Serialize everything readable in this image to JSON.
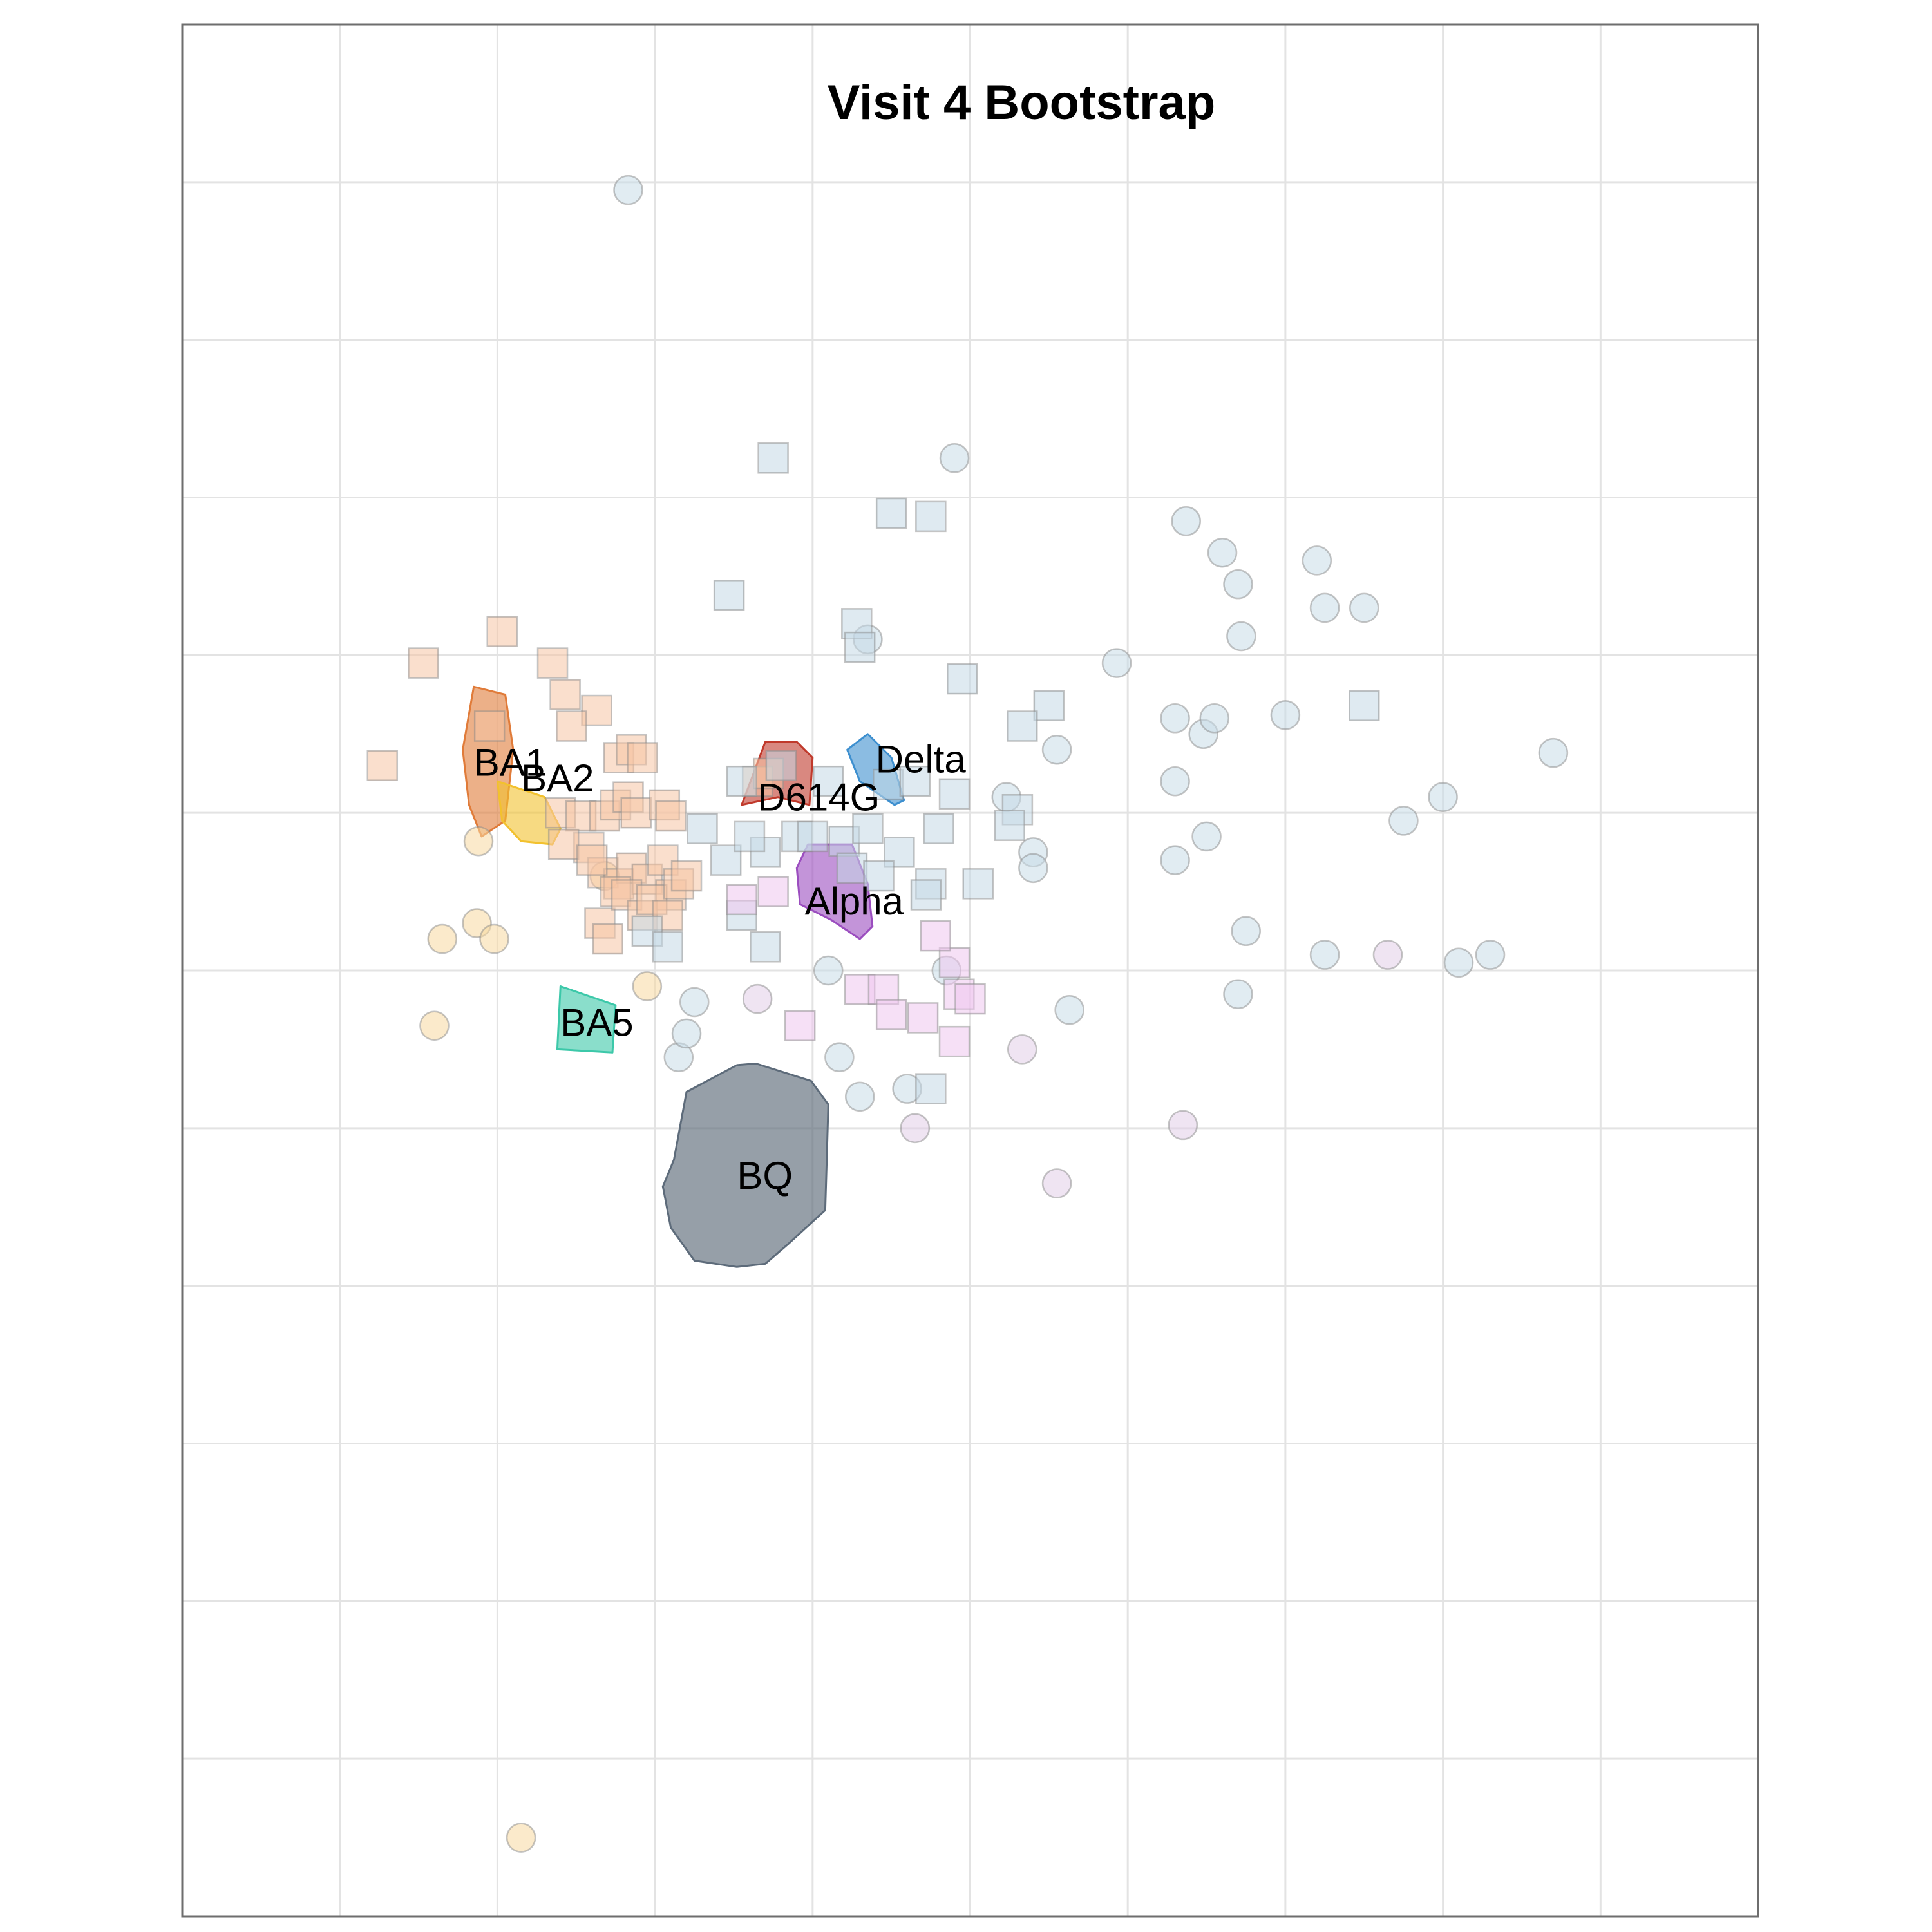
{
  "chart_data": {
    "type": "scatter",
    "title": "Visit 4 Bootstrap",
    "xlabel": "",
    "ylabel": "",
    "xlim": [
      0,
      10
    ],
    "ylim": [
      0,
      12
    ],
    "grid": true,
    "legend": "none",
    "clusters": [
      {
        "name": "BA1",
        "color": "#E07B39",
        "label_at": [
          1.85,
          7.3
        ],
        "hull": [
          [
            1.85,
            7.8
          ],
          [
            2.05,
            7.75
          ],
          [
            2.1,
            7.4
          ],
          [
            2.05,
            6.95
          ],
          [
            1.9,
            6.85
          ],
          [
            1.82,
            7.05
          ],
          [
            1.78,
            7.4
          ]
        ]
      },
      {
        "name": "BA2",
        "color": "#F2C12E",
        "label_at": [
          2.15,
          7.2
        ],
        "hull": [
          [
            2.0,
            7.2
          ],
          [
            2.3,
            7.1
          ],
          [
            2.4,
            6.9
          ],
          [
            2.35,
            6.8
          ],
          [
            2.15,
            6.82
          ],
          [
            2.03,
            6.95
          ]
        ]
      },
      {
        "name": "BA5",
        "color": "#3CC8A9",
        "label_at": [
          2.4,
          5.65
        ],
        "hull": [
          [
            2.4,
            5.9
          ],
          [
            2.75,
            5.78
          ],
          [
            2.73,
            5.48
          ],
          [
            2.38,
            5.5
          ]
        ]
      },
      {
        "name": "BQ",
        "color": "#5D6B7A",
        "label_at": [
          3.52,
          4.68
        ],
        "hull": [
          [
            3.2,
            5.23
          ],
          [
            3.52,
            5.4
          ],
          [
            3.64,
            5.41
          ],
          [
            3.99,
            5.3
          ],
          [
            4.1,
            5.15
          ],
          [
            4.08,
            4.48
          ],
          [
            3.85,
            4.27
          ],
          [
            3.7,
            4.14
          ],
          [
            3.52,
            4.12
          ],
          [
            3.25,
            4.16
          ],
          [
            3.1,
            4.37
          ],
          [
            3.05,
            4.63
          ],
          [
            3.12,
            4.8
          ]
        ]
      },
      {
        "name": "D614G",
        "color": "#C0392B",
        "label_at": [
          3.65,
          7.08
        ],
        "hull": [
          [
            3.55,
            7.05
          ],
          [
            3.7,
            7.45
          ],
          [
            3.9,
            7.45
          ],
          [
            4.0,
            7.35
          ],
          [
            3.98,
            7.05
          ],
          [
            3.78,
            7.1
          ]
        ]
      },
      {
        "name": "Delta",
        "color": "#3D8FCF",
        "label_at": [
          4.4,
          7.32
        ],
        "hull": [
          [
            4.22,
            7.4
          ],
          [
            4.35,
            7.5
          ],
          [
            4.5,
            7.35
          ],
          [
            4.58,
            7.08
          ],
          [
            4.52,
            7.05
          ],
          [
            4.3,
            7.2
          ]
        ]
      },
      {
        "name": "Alpha",
        "color": "#9B4DBF",
        "label_at": [
          3.95,
          6.42
        ],
        "hull": [
          [
            3.9,
            6.65
          ],
          [
            3.97,
            6.8
          ],
          [
            4.25,
            6.8
          ],
          [
            4.35,
            6.55
          ],
          [
            4.38,
            6.28
          ],
          [
            4.3,
            6.2
          ],
          [
            4.12,
            6.32
          ],
          [
            3.92,
            6.42
          ]
        ]
      }
    ],
    "series": [
      {
        "group": "omicron",
        "marker": "circle",
        "color": "#F7D9A0",
        "points": [
          [
            2.15,
            0.5
          ],
          [
            1.6,
            5.65
          ],
          [
            1.65,
            6.2
          ],
          [
            1.87,
            6.3
          ],
          [
            1.98,
            6.2
          ],
          [
            1.88,
            6.82
          ],
          [
            2.68,
            6.6
          ],
          [
            2.95,
            5.9
          ]
        ]
      },
      {
        "group": "omicron",
        "marker": "square",
        "color": "#F6C4A4",
        "points": [
          [
            2.03,
            8.15
          ],
          [
            1.53,
            7.95
          ],
          [
            2.35,
            7.95
          ],
          [
            2.43,
            7.75
          ],
          [
            2.63,
            7.65
          ],
          [
            2.47,
            7.55
          ],
          [
            1.27,
            7.3
          ],
          [
            1.95,
            7.55
          ],
          [
            2.77,
            7.35
          ],
          [
            2.85,
            7.4
          ],
          [
            2.92,
            7.35
          ],
          [
            2.4,
            7.0
          ],
          [
            2.53,
            6.98
          ],
          [
            2.68,
            6.98
          ],
          [
            2.75,
            7.05
          ],
          [
            2.83,
            7.1
          ],
          [
            2.88,
            7.0
          ],
          [
            3.06,
            7.05
          ],
          [
            3.1,
            6.98
          ],
          [
            2.58,
            6.78
          ],
          [
            2.67,
            6.62
          ],
          [
            2.77,
            6.55
          ],
          [
            2.85,
            6.65
          ],
          [
            2.95,
            6.58
          ],
          [
            3.05,
            6.7
          ],
          [
            3.1,
            6.48
          ],
          [
            2.42,
            6.8
          ],
          [
            2.6,
            6.7
          ],
          [
            2.65,
            6.3
          ],
          [
            2.75,
            6.5
          ],
          [
            2.82,
            6.48
          ],
          [
            2.92,
            6.35
          ],
          [
            2.98,
            6.45
          ],
          [
            3.08,
            6.35
          ],
          [
            3.15,
            6.55
          ],
          [
            3.2,
            6.6
          ],
          [
            2.7,
            6.2
          ],
          [
            3.65,
            7.2
          ],
          [
            3.72,
            7.25
          ]
        ]
      },
      {
        "group": "ancestral",
        "marker": "circle",
        "color": "#C9DDE8",
        "points": [
          [
            2.83,
            10.95
          ],
          [
            4.9,
            9.25
          ],
          [
            6.37,
            8.85
          ],
          [
            6.6,
            8.65
          ],
          [
            6.7,
            8.45
          ],
          [
            7.2,
            8.6
          ],
          [
            7.25,
            8.3
          ],
          [
            7.5,
            8.3
          ],
          [
            4.35,
            8.1
          ],
          [
            6.72,
            8.12
          ],
          [
            5.93,
            7.95
          ],
          [
            7.0,
            7.62
          ],
          [
            6.3,
            7.6
          ],
          [
            6.48,
            7.5
          ],
          [
            6.55,
            7.6
          ],
          [
            5.55,
            7.4
          ],
          [
            8.7,
            7.38
          ],
          [
            5.23,
            7.1
          ],
          [
            6.3,
            7.2
          ],
          [
            7.75,
            6.95
          ],
          [
            8.0,
            7.1
          ],
          [
            6.5,
            6.85
          ],
          [
            5.4,
            6.75
          ],
          [
            5.4,
            6.65
          ],
          [
            6.3,
            6.7
          ],
          [
            6.75,
            6.25
          ],
          [
            7.25,
            6.1
          ],
          [
            8.1,
            6.05
          ],
          [
            8.3,
            6.1
          ],
          [
            4.1,
            6.0
          ],
          [
            6.7,
            5.85
          ],
          [
            3.25,
            5.8
          ],
          [
            4.85,
            6.0
          ],
          [
            3.15,
            5.45
          ],
          [
            5.63,
            5.75
          ],
          [
            4.17,
            5.45
          ],
          [
            4.3,
            5.2
          ],
          [
            4.6,
            5.25
          ],
          [
            3.2,
            5.6
          ]
        ]
      },
      {
        "group": "ancestral",
        "marker": "square",
        "color": "#C4D9E6",
        "points": [
          [
            3.75,
            9.25
          ],
          [
            4.5,
            8.9
          ],
          [
            4.75,
            8.88
          ],
          [
            3.47,
            8.38
          ],
          [
            4.28,
            8.2
          ],
          [
            4.3,
            8.05
          ],
          [
            4.95,
            7.85
          ],
          [
            5.5,
            7.68
          ],
          [
            7.5,
            7.68
          ],
          [
            5.33,
            7.55
          ],
          [
            3.55,
            7.2
          ],
          [
            3.8,
            7.3
          ],
          [
            4.1,
            7.2
          ],
          [
            4.48,
            7.18
          ],
          [
            4.65,
            7.2
          ],
          [
            4.9,
            7.12
          ],
          [
            5.3,
            7.02
          ],
          [
            5.25,
            6.92
          ],
          [
            4.8,
            6.9
          ],
          [
            3.7,
            6.75
          ],
          [
            3.9,
            6.85
          ],
          [
            4.2,
            6.82
          ],
          [
            4.35,
            6.9
          ],
          [
            4.55,
            6.75
          ],
          [
            4.75,
            6.55
          ],
          [
            3.3,
            6.9
          ],
          [
            3.45,
            6.7
          ],
          [
            3.6,
            6.85
          ],
          [
            5.05,
            6.55
          ],
          [
            4.72,
            6.48
          ],
          [
            3.55,
            6.35
          ],
          [
            3.7,
            6.15
          ],
          [
            2.95,
            6.25
          ],
          [
            3.08,
            6.15
          ],
          [
            4.75,
            5.25
          ],
          [
            4.0,
            6.85
          ],
          [
            4.25,
            6.65
          ],
          [
            4.42,
            6.6
          ]
        ]
      },
      {
        "group": "alpha",
        "marker": "circle",
        "color": "#E2CDE8",
        "points": [
          [
            3.65,
            5.82
          ],
          [
            5.33,
            5.5
          ],
          [
            6.35,
            5.02
          ],
          [
            5.55,
            4.65
          ],
          [
            7.65,
            6.1
          ],
          [
            4.65,
            5.0
          ]
        ]
      },
      {
        "group": "alpha",
        "marker": "square",
        "color": "#EEC7EE",
        "points": [
          [
            3.55,
            6.45
          ],
          [
            3.75,
            6.5
          ],
          [
            4.9,
            6.05
          ],
          [
            4.78,
            6.22
          ],
          [
            4.93,
            5.85
          ],
          [
            5.0,
            5.82
          ],
          [
            4.3,
            5.88
          ],
          [
            4.45,
            5.88
          ],
          [
            4.5,
            5.72
          ],
          [
            4.7,
            5.7
          ],
          [
            3.92,
            5.65
          ],
          [
            4.9,
            5.55
          ]
        ]
      }
    ]
  }
}
